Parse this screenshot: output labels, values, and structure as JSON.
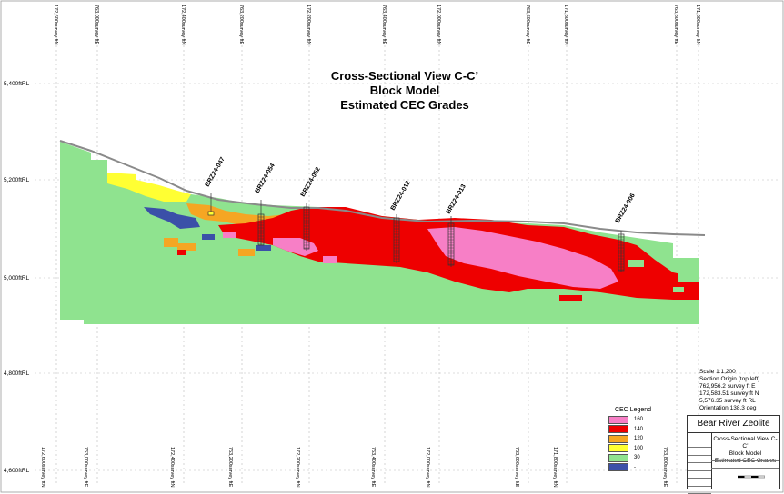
{
  "title": [
    "Cross-Sectional View C-C’",
    "Block Model",
    "Estimated CEC Grades"
  ],
  "rl_labels": [
    "5,400ftRL",
    "5,200ftRL",
    "5,000ftRL",
    "4,800ftRL",
    "4,600ftRL"
  ],
  "top_grid_labels": [
    "172,600survey ftN",
    "763,000survey ftE",
    "172,400survey ftN",
    "763,200survey ftE",
    "172,200survey ftN",
    "763,400survey ftE",
    "172,000survey ftN",
    "763,600survey ftE",
    "171,800survey ftN",
    "763,800survey ftE",
    "171,600survey ftN"
  ],
  "bottom_grid_labels": [
    "172,600survey ftN",
    "763,000survey ftE",
    "172,400survey ftN",
    "763,200survey ftE",
    "172,200survey ftN",
    "763,400survey ftE",
    "172,000survey ftN",
    "763,600survey ftE",
    "171,800survey ftN",
    "763,800survey ftE"
  ],
  "drillholes": [
    "BRZ24-047",
    "BRZ24-054",
    "BRZ24-052",
    "BRZ24-012",
    "BRZ24-013",
    "BRZ24-006"
  ],
  "section_info": [
    "Scale 1:1,200",
    "Section Origin (top left)",
    "762,956.2 survey ft E",
    "172,583.51 survey ft N",
    "5,576.35 survey ft RL",
    "Orientation 138.3 deg"
  ],
  "legend": {
    "title": "CEC Legend",
    "items": [
      {
        "label": "160",
        "color": "#f77fc6"
      },
      {
        "label": "140",
        "color": "#ee0000"
      },
      {
        "label": "120",
        "color": "#f5a623"
      },
      {
        "label": "100",
        "color": "#ffff33"
      },
      {
        "label": "30",
        "color": "#8fe38f"
      },
      {
        "label": "-",
        "color": "#3b50a8"
      }
    ]
  },
  "title_block": {
    "company": "Bear River Zeolite",
    "description": [
      "Cross-Sectional View C-C’",
      "Block Model",
      "Estimated CEC Grades"
    ]
  },
  "colors": {
    "low_green": "#8fe38f",
    "red": "#ee0000",
    "pink": "#f77fc6",
    "orange": "#f5a623",
    "yellow": "#ffff33",
    "blue": "#3b50a8",
    "topo": "#8a8a8a"
  }
}
